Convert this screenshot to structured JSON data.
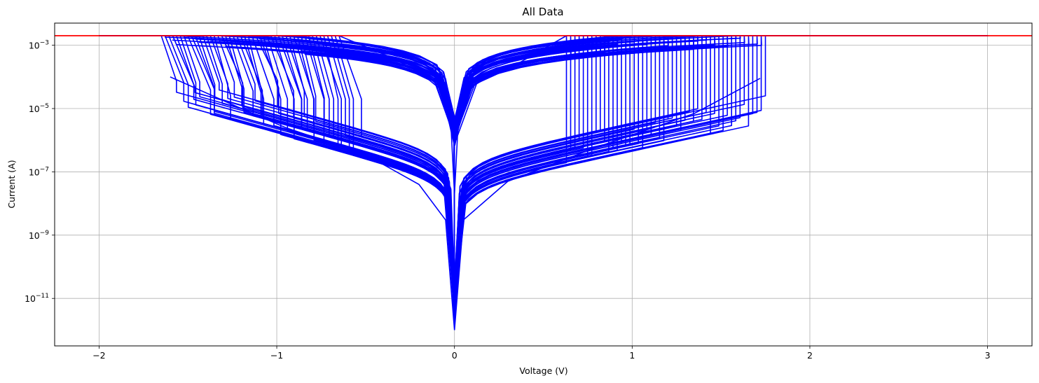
{
  "chart_data": {
    "type": "line",
    "title": "All Data",
    "xlabel": "Voltage (V)",
    "ylabel": "Current (A)",
    "xlim": [
      -2.25,
      3.25
    ],
    "ylim_log10": [
      -12.5,
      -2.3
    ],
    "yscale": "log",
    "grid": true,
    "x_ticks": [
      -2,
      -1,
      0,
      1,
      2,
      3
    ],
    "x_tick_labels": [
      "−2",
      "−1",
      "0",
      "1",
      "2",
      "3"
    ],
    "y_ticks_log10": [
      -3,
      -5,
      -7,
      -9,
      -11
    ],
    "y_tick_bases": [
      "10",
      "10",
      "10",
      "10",
      "10"
    ],
    "y_tick_exponents": [
      "−3",
      "−5",
      "−7",
      "−9",
      "−11"
    ],
    "compliance_line": {
      "y": 0.002,
      "x_range": [
        -2.25,
        3.25
      ],
      "color": "#ff0000"
    },
    "series_color": "#0000ff",
    "envelope": {
      "compliance_current": 0.002,
      "upper_sweep_x": [
        -2,
        3
      ],
      "reset_voltage_range_neg": [
        -1.65,
        -0.65
      ],
      "set_voltage_range_pos": [
        0.63,
        1.75
      ],
      "minimum_current": 1e-12,
      "lower_envelope": [
        {
          "x": -1.6,
          "y": 0.0001
        },
        {
          "x": -1.2,
          "y": 1e-05
        },
        {
          "x": -0.95,
          "y": 2.5e-06
        },
        {
          "x": -0.5,
          "y": 3.5e-07
        },
        {
          "x": -0.2,
          "y": 4e-08
        },
        {
          "x": -0.05,
          "y": 3e-09
        },
        {
          "x": 0,
          "y": 1e-12
        },
        {
          "x": 0.05,
          "y": 3e-09
        },
        {
          "x": 0.3,
          "y": 5e-08
        },
        {
          "x": 0.8,
          "y": 6e-07
        },
        {
          "x": 1.35,
          "y": 7e-06
        },
        {
          "x": 1.72,
          "y": 9e-05
        }
      ],
      "upper_envelope": [
        {
          "x": -0.65,
          "y": 0.002
        },
        {
          "x": -0.35,
          "y": 0.0004
        },
        {
          "x": -0.1,
          "y": 7e-05
        },
        {
          "x": -0.02,
          "y": 3e-06
        },
        {
          "x": 0,
          "y": 2e-08
        },
        {
          "x": 0.02,
          "y": 3e-06
        },
        {
          "x": 0.1,
          "y": 7e-05
        },
        {
          "x": 0.35,
          "y": 0.00025
        },
        {
          "x": 0.63,
          "y": 0.002
        }
      ]
    }
  }
}
